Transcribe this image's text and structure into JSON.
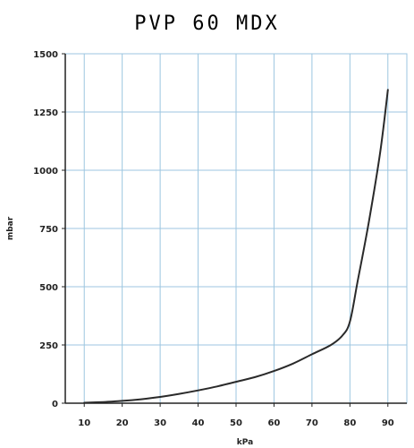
{
  "chart_data": {
    "type": "line",
    "title": "PVP 60 MDX",
    "xlabel": "kPa",
    "ylabel": "mbar",
    "xlim": [
      5,
      95
    ],
    "ylim": [
      0,
      1500
    ],
    "x_ticks": [
      10,
      20,
      30,
      40,
      50,
      60,
      70,
      80,
      90
    ],
    "y_ticks": [
      0,
      250,
      500,
      750,
      1000,
      1250,
      1500
    ],
    "x_tick_labels": [
      "10",
      "20",
      "30",
      "40",
      "50",
      "60",
      "70",
      "80",
      "90"
    ],
    "y_tick_labels": [
      "0",
      "250",
      "500",
      "750",
      "1000",
      "1250",
      "1500"
    ],
    "grid": true,
    "colors": {
      "grid": "#9cc6e0",
      "line": "#2a2a2a",
      "axis": "#222222"
    },
    "series": [
      {
        "x": [
          10,
          15,
          20,
          25,
          30,
          35,
          40,
          45,
          50,
          55,
          60,
          65,
          70,
          75,
          78,
          80,
          82,
          85,
          88,
          90
        ],
        "y": [
          2,
          5,
          10,
          17,
          27,
          40,
          55,
          72,
          92,
          112,
          138,
          170,
          210,
          250,
          290,
          350,
          520,
          780,
          1080,
          1345
        ]
      }
    ]
  }
}
